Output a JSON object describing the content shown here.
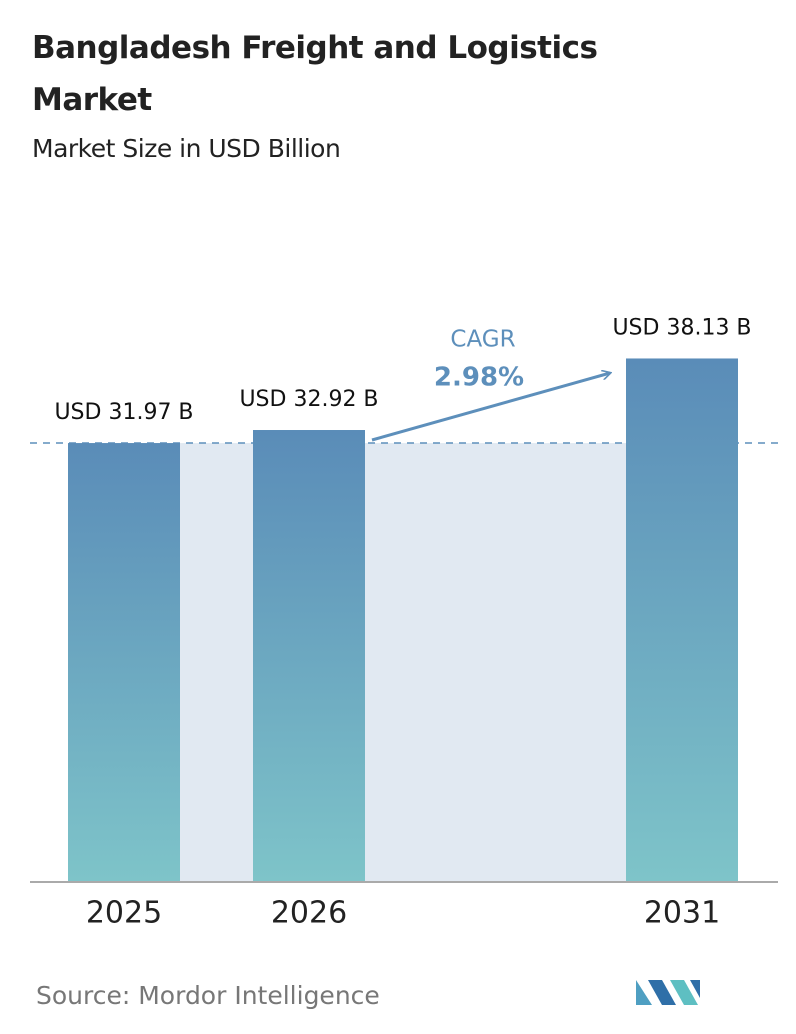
{
  "chart_data": {
    "type": "bar",
    "title": "Bangladesh Freight and Logistics Market",
    "subtitle": "Market Size in USD Billion",
    "categories": [
      "2025",
      "2026",
      "2031"
    ],
    "values": [
      31.97,
      32.92,
      38.13
    ],
    "value_labels": [
      "USD 31.97 B",
      "USD 32.92 B",
      "USD 38.13 B"
    ],
    "annotation": {
      "label": "CAGR",
      "value": "2.98%"
    },
    "source": "Source: Mordor Intelligence"
  }
}
